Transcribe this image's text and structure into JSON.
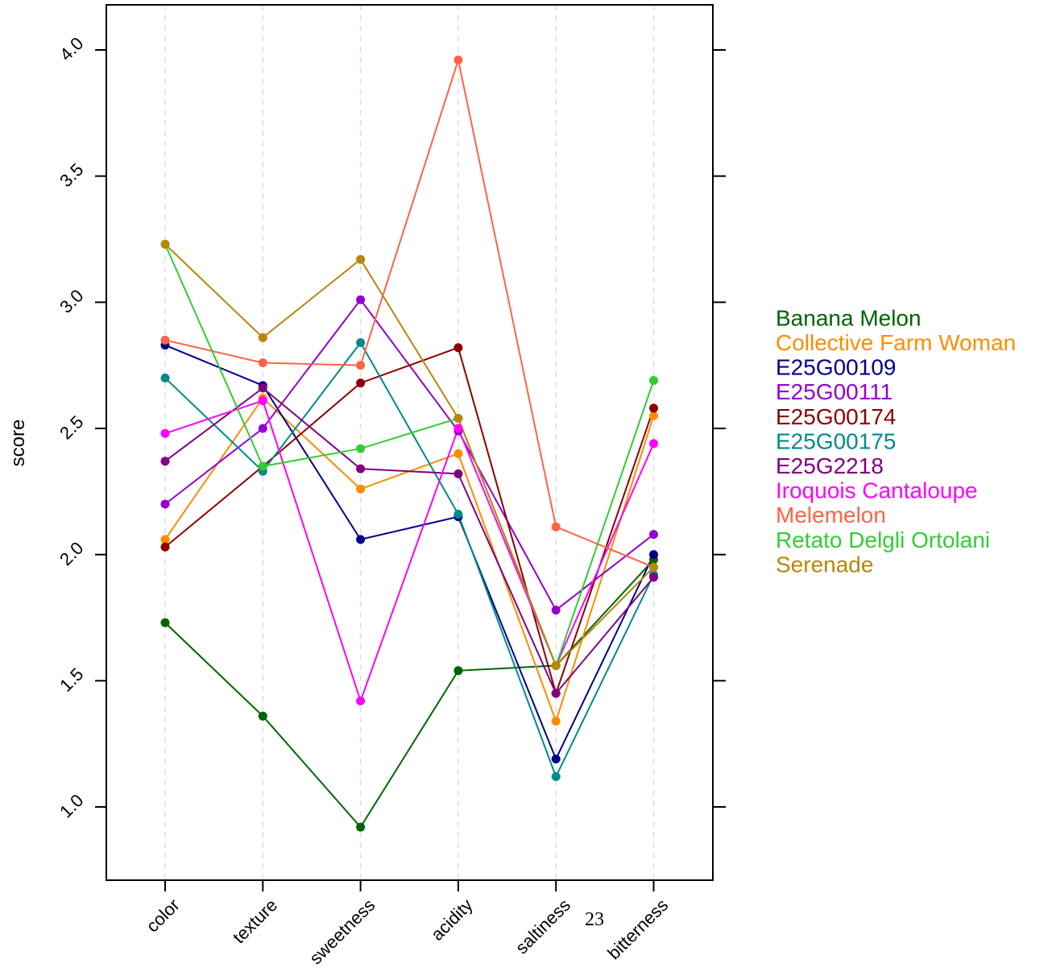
{
  "chart_data": {
    "type": "line",
    "title": "",
    "xlabel": "",
    "ylabel": "score",
    "categories": [
      "color",
      "texture",
      "sweetness",
      "acidity",
      "saltiness",
      "bitterness"
    ],
    "ylim": [
      0.7,
      4.2
    ],
    "yticks": [
      1.0,
      1.5,
      2.0,
      2.5,
      3.0,
      3.5,
      4.0
    ],
    "ytick_labels": [
      "1.0",
      "1.5",
      "2.0",
      "2.5",
      "3.0",
      "3.5",
      "4.0"
    ],
    "grid": "vertical dashed at categories",
    "legend_placement": "right",
    "series": [
      {
        "name": "Banana Melon",
        "color": "#006400",
        "values": [
          1.73,
          1.36,
          0.92,
          1.54,
          1.56,
          1.98
        ]
      },
      {
        "name": "Collective Farm Woman",
        "color": "#ff8c00",
        "values": [
          2.06,
          2.62,
          2.26,
          2.4,
          1.34,
          2.55
        ]
      },
      {
        "name": "E25G00109",
        "color": "#00008b",
        "values": [
          2.83,
          2.67,
          2.06,
          2.15,
          1.19,
          2.0
        ]
      },
      {
        "name": "E25G00111",
        "color": "#9400d3",
        "values": [
          2.2,
          2.5,
          3.01,
          2.49,
          1.78,
          2.08
        ]
      },
      {
        "name": "E25G00174",
        "color": "#8b0000",
        "values": [
          2.03,
          2.35,
          2.68,
          2.82,
          1.45,
          2.58
        ]
      },
      {
        "name": "E25G00175",
        "color": "#008b8b",
        "values": [
          2.7,
          2.33,
          2.84,
          2.16,
          1.12,
          1.92
        ]
      },
      {
        "name": "E25G2218",
        "color": "#800080",
        "values": [
          2.37,
          2.66,
          2.34,
          2.32,
          1.45,
          1.91
        ]
      },
      {
        "name": "Iroquois Cantaloupe",
        "color": "#ff00ff",
        "values": [
          2.48,
          2.61,
          1.42,
          2.5,
          1.56,
          2.44
        ]
      },
      {
        "name": "Melemelon",
        "color": "#ff6347",
        "values": [
          2.85,
          2.76,
          2.75,
          3.96,
          2.11,
          1.95
        ]
      },
      {
        "name": "Retato Delgli Ortolani",
        "color": "#32cd32",
        "values": [
          3.23,
          2.35,
          2.42,
          2.54,
          1.56,
          2.69
        ]
      },
      {
        "name": "Serenade",
        "color": "#b8860b",
        "values": [
          3.23,
          2.86,
          3.17,
          2.54,
          1.56,
          1.95
        ]
      }
    ]
  },
  "page_number": "23"
}
